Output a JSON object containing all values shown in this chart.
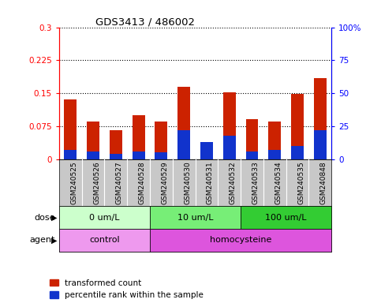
{
  "title": "GDS3413 / 486002",
  "samples": [
    "GSM240525",
    "GSM240526",
    "GSM240527",
    "GSM240528",
    "GSM240529",
    "GSM240530",
    "GSM240531",
    "GSM240532",
    "GSM240533",
    "GSM240534",
    "GSM240535",
    "GSM240848"
  ],
  "red_values": [
    0.135,
    0.085,
    0.065,
    0.1,
    0.085,
    0.165,
    0.008,
    0.152,
    0.09,
    0.085,
    0.148,
    0.185
  ],
  "blue_percentiles": [
    7,
    6,
    4,
    6,
    5,
    22,
    13,
    18,
    6,
    7,
    10,
    22
  ],
  "red_color": "#cc2200",
  "blue_color": "#1133cc",
  "ylim_left": [
    0,
    0.3
  ],
  "ylim_right": [
    0,
    100
  ],
  "yticks_left": [
    0,
    0.075,
    0.15,
    0.225,
    0.3
  ],
  "yticks_right": [
    0,
    25,
    50,
    75,
    100
  ],
  "ytick_labels_left": [
    "0",
    "0.075",
    "0.15",
    "0.225",
    "0.3"
  ],
  "ytick_labels_right": [
    "0",
    "25",
    "50",
    "75",
    "100%"
  ],
  "dose_groups": [
    {
      "text": "0 um/L",
      "start": 0,
      "end": 4,
      "color": "#ccffcc"
    },
    {
      "text": "10 um/L",
      "start": 4,
      "end": 8,
      "color": "#66ee66"
    },
    {
      "text": "100 um/L",
      "start": 8,
      "end": 12,
      "color": "#33cc33"
    }
  ],
  "agent_groups": [
    {
      "text": "control",
      "start": 0,
      "end": 4,
      "color": "#ee88ee"
    },
    {
      "text": "homocysteine",
      "start": 4,
      "end": 12,
      "color": "#dd55dd"
    }
  ],
  "dose_row_label": "dose",
  "agent_row_label": "agent",
  "legend_red": "transformed count",
  "legend_blue": "percentile rank within the sample",
  "sample_box_bg": "#c8c8c8",
  "border_color": "#888888"
}
